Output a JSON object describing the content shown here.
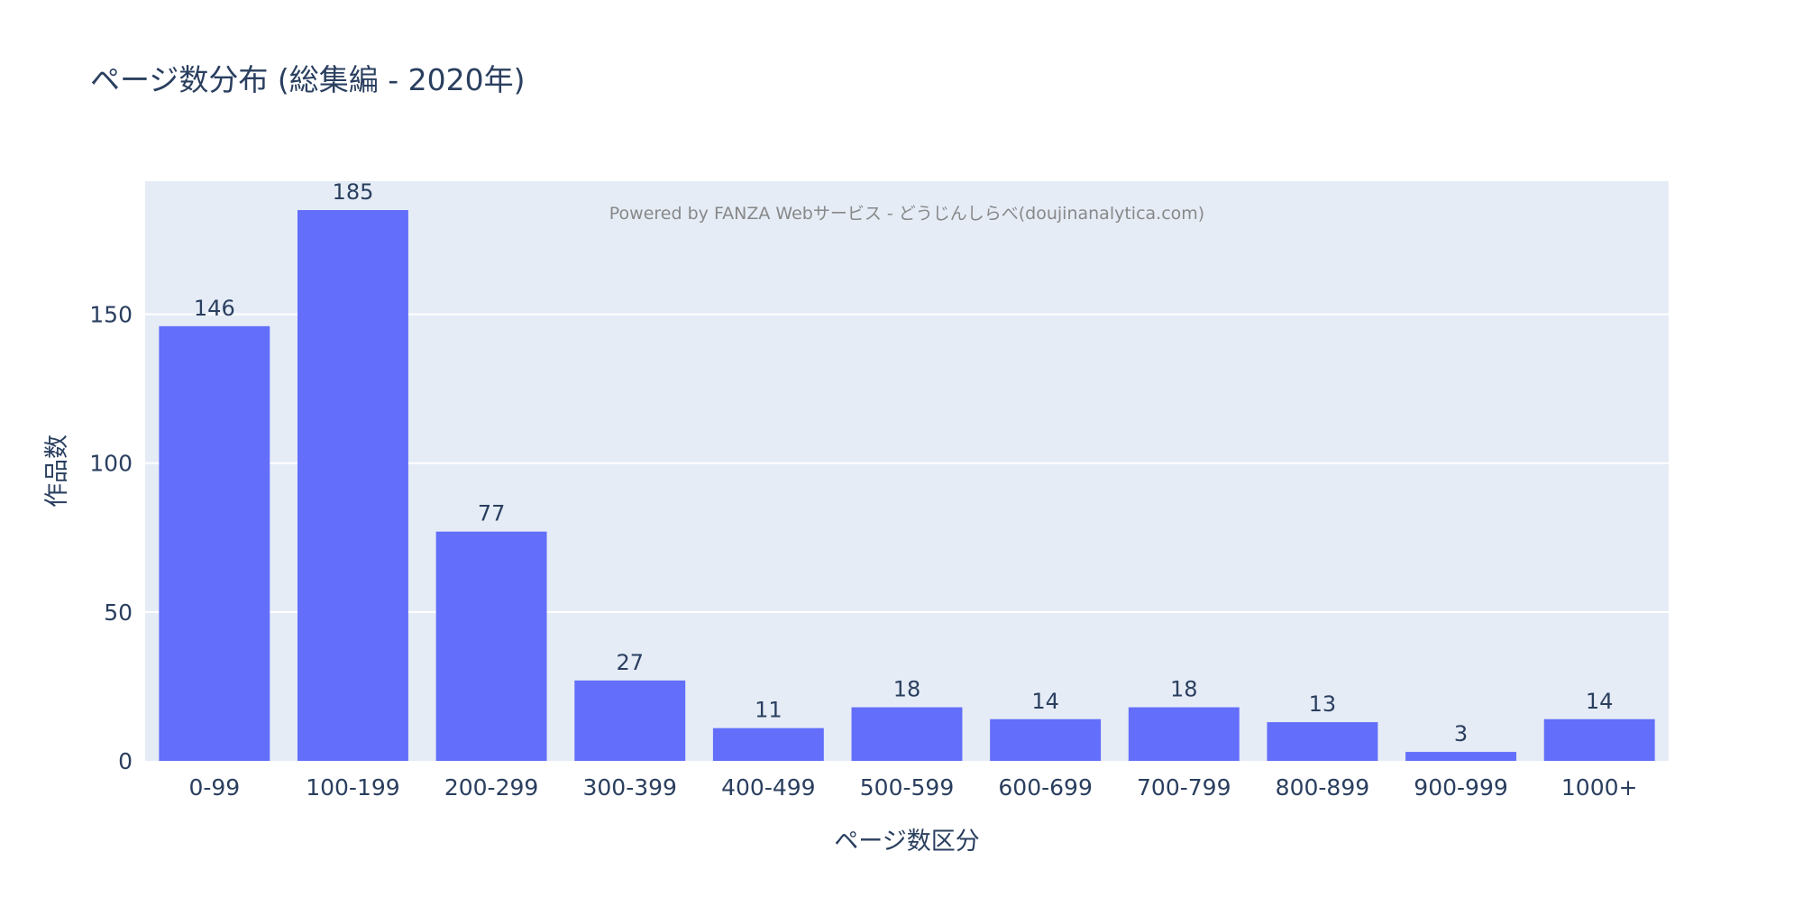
{
  "chart_data": {
    "type": "bar",
    "title": "ページ数分布 (総集編 - 2020年)",
    "xlabel": "ページ数区分",
    "ylabel": "作品数",
    "categories": [
      "0-99",
      "100-199",
      "200-299",
      "300-399",
      "400-499",
      "500-599",
      "600-699",
      "700-799",
      "800-899",
      "900-999",
      "1000+"
    ],
    "values": [
      146,
      185,
      77,
      27,
      11,
      18,
      14,
      18,
      13,
      3,
      14
    ],
    "ylim": [
      0,
      194.7
    ],
    "yticks": [
      0,
      50,
      100,
      150
    ],
    "annotation": "Powered by FANZA Webサービス - どうじんしらべ(doujinanalytica.com)",
    "grid": true,
    "legend": "none",
    "colors": {
      "bar": "#636efa",
      "plot_bg": "#e5ecf6",
      "grid": "#ffffff",
      "text": "#2a3f5f"
    }
  }
}
